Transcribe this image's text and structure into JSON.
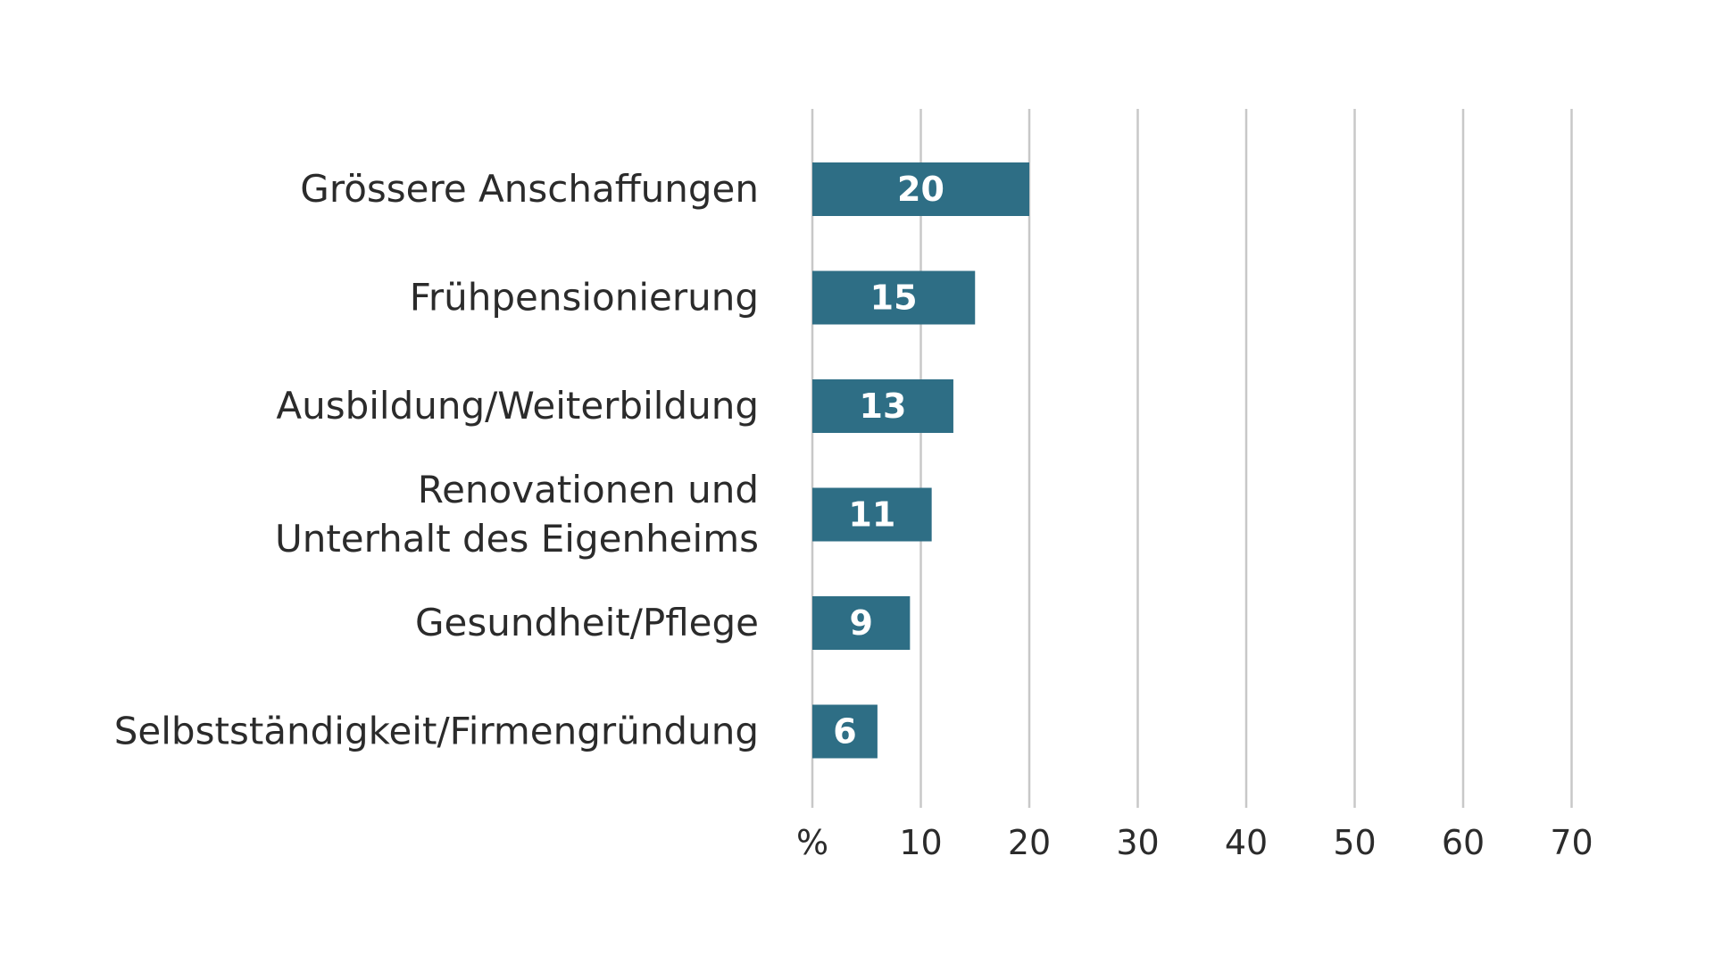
{
  "chart_data": {
    "type": "bar",
    "orientation": "horizontal",
    "categories": [
      "Grössere Anschaffungen",
      "Frühpensionierung",
      "Ausbildung/Weiterbildung",
      "Renovationen und Unterhalt des Eigenheims",
      "Gesundheit/Pflege",
      "Selbstständigkeit/Firmengründung"
    ],
    "category_lines": [
      [
        "Grössere Anschaffungen"
      ],
      [
        "Frühpensionierung"
      ],
      [
        "Ausbildung/Weiterbildung"
      ],
      [
        "Renovationen und",
        "Unterhalt des Eigenheims"
      ],
      [
        "Gesundheit/Pflege"
      ],
      [
        "Selbstständigkeit/Firmengründung"
      ]
    ],
    "values": [
      20,
      15,
      13,
      11,
      9,
      6
    ],
    "data_labels": [
      "20",
      "15",
      "13",
      "11",
      "9",
      "6"
    ],
    "x_ticks": [
      0,
      10,
      20,
      30,
      40,
      50,
      60,
      70
    ],
    "x_tick_labels": [
      "%",
      "10",
      "20",
      "30",
      "40",
      "50",
      "60",
      "70"
    ],
    "xlim": [
      0,
      70
    ],
    "title": "",
    "xlabel": "",
    "ylabel": "",
    "grid": "vertical",
    "legend": "none",
    "bar_color": "#2e6e85",
    "grid_color": "#c8c8c8",
    "label_color": "#2b2b2b",
    "data_label_color": "#ffffff"
  }
}
